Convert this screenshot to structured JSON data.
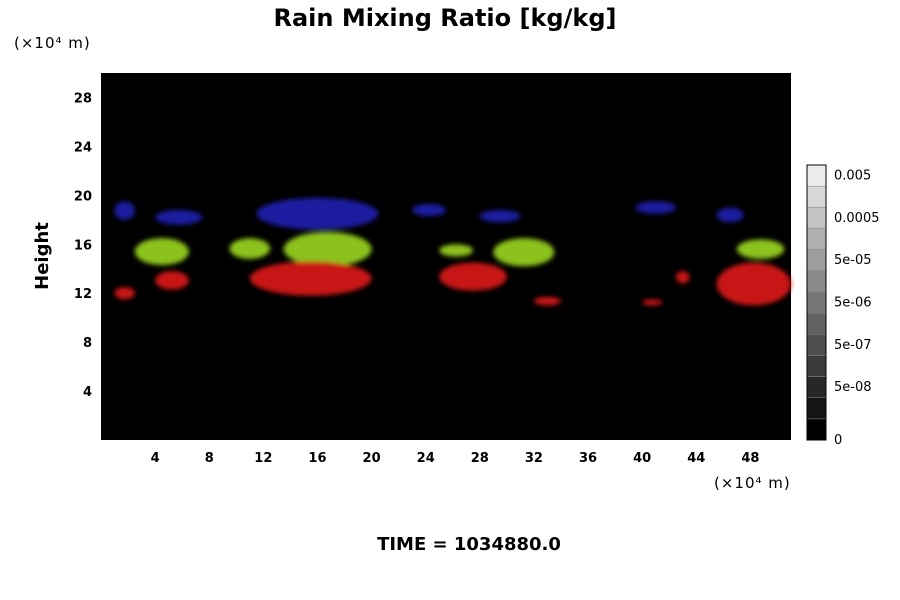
{
  "chart_data": {
    "type": "heatmap",
    "title": "Rain Mixing Ratio [kg/kg]",
    "ylabel": "Height",
    "x_unit": "(×10⁴ m)",
    "y_unit": "(×10⁴ m)",
    "xlim": [
      0,
      51
    ],
    "ylim": [
      0,
      30
    ],
    "x_ticks": [
      4,
      8,
      12,
      16,
      20,
      24,
      28,
      32,
      36,
      40,
      44,
      48
    ],
    "y_ticks": [
      4,
      8,
      12,
      16,
      20,
      24,
      28
    ],
    "colorbar": {
      "labels": [
        "0",
        "5e-08",
        "5e-07",
        "5e-06",
        "5e-05",
        "0.0005",
        "0.005"
      ],
      "levels": 13
    },
    "background_color": "#000000",
    "layer_colors": {
      "upper": "#1a1aa0",
      "middle": "#8cc21a",
      "lower": "#c81414"
    },
    "regions": [
      {
        "layer": "upper",
        "x0": 1.0,
        "x1": 2.5,
        "y0": 18.0,
        "y1": 19.5
      },
      {
        "layer": "upper",
        "x0": 4.0,
        "x1": 7.5,
        "y0": 17.6,
        "y1": 18.8
      },
      {
        "layer": "upper",
        "x0": 11.5,
        "x1": 20.5,
        "y0": 17.2,
        "y1": 19.8
      },
      {
        "layer": "upper",
        "x0": 23.0,
        "x1": 25.5,
        "y0": 18.3,
        "y1": 19.3
      },
      {
        "layer": "upper",
        "x0": 28.0,
        "x1": 31.0,
        "y0": 17.8,
        "y1": 18.8
      },
      {
        "layer": "upper",
        "x0": 39.5,
        "x1": 42.5,
        "y0": 18.5,
        "y1": 19.5
      },
      {
        "layer": "upper",
        "x0": 45.5,
        "x1": 47.5,
        "y0": 17.8,
        "y1": 19.0
      },
      {
        "layer": "middle",
        "x0": 2.5,
        "x1": 6.5,
        "y0": 14.3,
        "y1": 16.5
      },
      {
        "layer": "middle",
        "x0": 9.5,
        "x1": 12.5,
        "y0": 14.8,
        "y1": 16.5
      },
      {
        "layer": "middle",
        "x0": 13.5,
        "x1": 20.0,
        "y0": 14.2,
        "y1": 17.0
      },
      {
        "layer": "middle",
        "x0": 25.0,
        "x1": 27.5,
        "y0": 15.0,
        "y1": 16.0
      },
      {
        "layer": "middle",
        "x0": 29.0,
        "x1": 33.5,
        "y0": 14.2,
        "y1": 16.5
      },
      {
        "layer": "middle",
        "x0": 47.0,
        "x1": 50.5,
        "y0": 14.8,
        "y1": 16.4
      },
      {
        "layer": "lower",
        "x0": 1.0,
        "x1": 2.5,
        "y0": 11.5,
        "y1": 12.5
      },
      {
        "layer": "lower",
        "x0": 4.0,
        "x1": 6.5,
        "y0": 12.3,
        "y1": 13.8
      },
      {
        "layer": "lower",
        "x0": 11.0,
        "x1": 20.0,
        "y0": 11.8,
        "y1": 14.6
      },
      {
        "layer": "lower",
        "x0": 25.0,
        "x1": 30.0,
        "y0": 12.2,
        "y1": 14.5
      },
      {
        "layer": "lower",
        "x0": 32.0,
        "x1": 34.0,
        "y0": 11.0,
        "y1": 11.7
      },
      {
        "layer": "lower",
        "x0": 40.0,
        "x1": 41.5,
        "y0": 11.0,
        "y1": 11.5
      },
      {
        "layer": "lower",
        "x0": 42.5,
        "x1": 43.5,
        "y0": 12.8,
        "y1": 13.8
      },
      {
        "layer": "lower",
        "x0": 45.5,
        "x1": 51.0,
        "y0": 11.0,
        "y1": 14.5
      }
    ],
    "time_label": "TIME = 1034880.0"
  }
}
